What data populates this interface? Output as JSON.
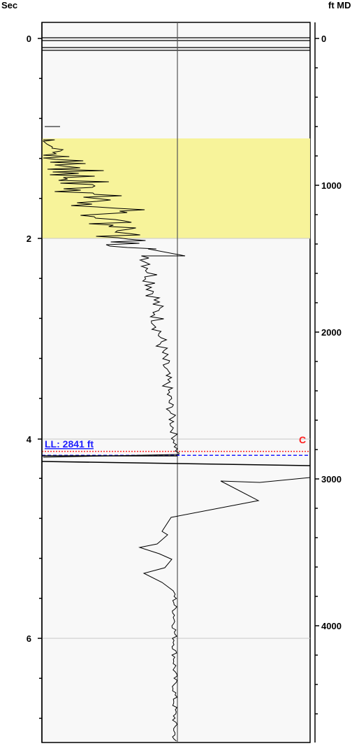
{
  "chart_data": {
    "type": "line",
    "left_axis": {
      "label": "Sec",
      "range": [
        -0.2,
        7.4
      ],
      "major_ticks": [
        "0",
        "2",
        "4",
        "6"
      ],
      "minor_step": 0.4
    },
    "right_axis": {
      "label": "ft MD",
      "major_ticks": [
        "0",
        "1000",
        "2000",
        "3000",
        "4000"
      ],
      "minor_step": 200
    },
    "highlight_zone": {
      "from_sec": 1.0,
      "to_sec": 2.0,
      "color": "#f7f39a"
    },
    "markers": [
      {
        "label": "LL: 2841 ft",
        "color": "#1f1fff",
        "style": "dashed",
        "sec": 4.17
      },
      {
        "label": "C",
        "color": "#ff2020",
        "style": "dotted",
        "sec": 4.13
      }
    ],
    "curve_center_fraction": 0.5,
    "colors": {
      "background": "#f8f8f8",
      "curve": "#000000",
      "grid": "#c8c8c8",
      "frame": "#000000"
    }
  }
}
